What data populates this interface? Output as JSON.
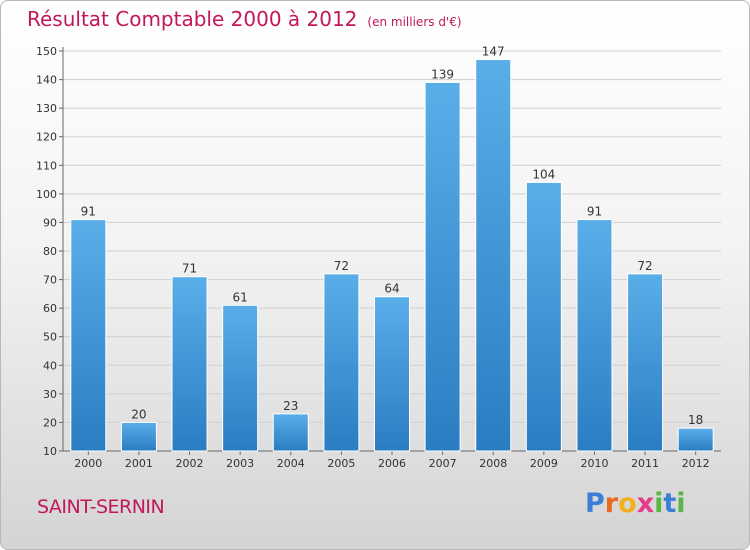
{
  "header": {
    "title": "Résultat Comptable 2000 à 2012",
    "subtitle": "(en milliers d'€)"
  },
  "footer": {
    "city": "SAINT-SERNIN",
    "brand": "Proxiti"
  },
  "colors": {
    "title": "#c2185b",
    "bar_top": "#5aaee8",
    "bar_bottom": "#2a7dc2",
    "grid": "#cfcfcf",
    "logo_p": "#3a7fd5",
    "logo_r": "#e86a1a",
    "logo_o": "#f2b01e",
    "logo_x": "#e83a8a",
    "logo_i": "#5bb443",
    "logo_t": "#3a7fd5"
  },
  "chart_data": {
    "type": "bar",
    "title": "Résultat Comptable 2000 à 2012",
    "subtitle": "(en milliers d'€)",
    "xlabel": "",
    "ylabel": "",
    "categories": [
      "2000",
      "2001",
      "2002",
      "2003",
      "2004",
      "2005",
      "2006",
      "2007",
      "2008",
      "2009",
      "2010",
      "2011",
      "2012"
    ],
    "values": [
      91,
      20,
      71,
      61,
      23,
      72,
      64,
      139,
      147,
      104,
      91,
      72,
      18
    ],
    "ylim": [
      10,
      150
    ],
    "yticks": [
      10,
      20,
      30,
      40,
      50,
      60,
      70,
      80,
      90,
      100,
      110,
      120,
      130,
      140,
      150
    ],
    "grid": true,
    "data_labels": true,
    "legend": false
  }
}
